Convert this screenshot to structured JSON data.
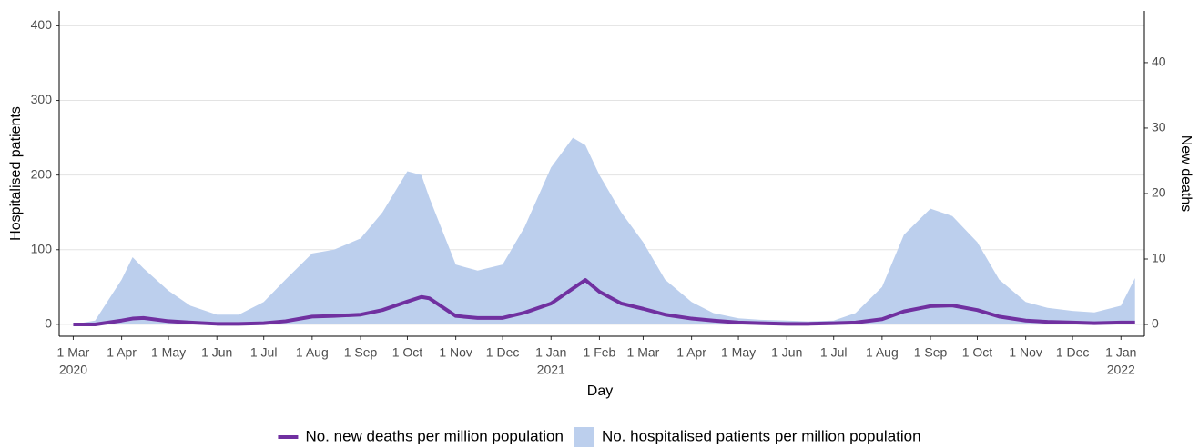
{
  "chart_data": {
    "type": "area-line",
    "x_label": "Day",
    "y_label": "Hospitalised patients",
    "y2_label": "New deaths",
    "x": [
      "2020-03-01",
      "2020-03-15",
      "2020-04-01",
      "2020-04-08",
      "2020-04-15",
      "2020-05-01",
      "2020-05-15",
      "2020-06-01",
      "2020-06-15",
      "2020-07-01",
      "2020-07-15",
      "2020-08-01",
      "2020-08-15",
      "2020-09-01",
      "2020-09-15",
      "2020-10-01",
      "2020-10-10",
      "2020-10-15",
      "2020-11-01",
      "2020-11-15",
      "2020-12-01",
      "2020-12-15",
      "2021-01-01",
      "2021-01-15",
      "2021-01-23",
      "2021-02-01",
      "2021-02-15",
      "2021-03-01",
      "2021-03-15",
      "2021-04-01",
      "2021-04-15",
      "2021-05-01",
      "2021-05-15",
      "2021-06-01",
      "2021-06-15",
      "2021-07-01",
      "2021-07-15",
      "2021-08-01",
      "2021-08-15",
      "2021-09-01",
      "2021-09-15",
      "2021-10-01",
      "2021-10-15",
      "2021-11-01",
      "2021-11-15",
      "2021-12-01",
      "2021-12-15",
      "2022-01-01",
      "2022-01-10"
    ],
    "series": [
      {
        "name": "No. new deaths per million population",
        "color": "#7030a0",
        "axis": "y2",
        "kind": "line",
        "values": [
          0,
          0,
          0.6,
          0.9,
          1.0,
          0.5,
          0.3,
          0.1,
          0.1,
          0.2,
          0.5,
          1.2,
          1.3,
          1.5,
          2.2,
          3.5,
          4.2,
          4.0,
          1.3,
          1.0,
          1.0,
          1.8,
          3.2,
          5.5,
          6.8,
          5.0,
          3.2,
          2.4,
          1.5,
          0.9,
          0.6,
          0.3,
          0.2,
          0.1,
          0.1,
          0.2,
          0.3,
          0.8,
          2.0,
          2.8,
          2.9,
          2.2,
          1.2,
          0.6,
          0.4,
          0.3,
          0.2,
          0.3,
          0.3
        ]
      },
      {
        "name": "No. hospitalised patients per million population",
        "color": "#bccfed",
        "kind": "area",
        "values": [
          0,
          5,
          60,
          90,
          75,
          45,
          25,
          13,
          13,
          30,
          60,
          95,
          100,
          115,
          150,
          205,
          200,
          170,
          80,
          72,
          80,
          130,
          210,
          250,
          240,
          200,
          150,
          110,
          60,
          30,
          15,
          8,
          6,
          5,
          4,
          5,
          15,
          50,
          120,
          155,
          145,
          110,
          60,
          30,
          22,
          18,
          16,
          25,
          62
        ]
      }
    ],
    "xlim": [
      "2020-02-21",
      "2022-01-16"
    ],
    "xticks": [
      {
        "value": "2020-03-01",
        "label": "1 Mar"
      },
      {
        "value": "2020-04-01",
        "label": "1 Apr"
      },
      {
        "value": "2020-05-01",
        "label": "1 May"
      },
      {
        "value": "2020-06-01",
        "label": "1 Jun"
      },
      {
        "value": "2020-07-01",
        "label": "1 Jul"
      },
      {
        "value": "2020-08-01",
        "label": "1 Aug"
      },
      {
        "value": "2020-09-01",
        "label": "1 Sep"
      },
      {
        "value": "2020-10-01",
        "label": "1 Oct"
      },
      {
        "value": "2020-11-01",
        "label": "1 Nov"
      },
      {
        "value": "2020-12-01",
        "label": "1 Dec"
      },
      {
        "value": "2021-01-01",
        "label": "1 Jan"
      },
      {
        "value": "2021-02-01",
        "label": "1 Feb"
      },
      {
        "value": "2021-03-01",
        "label": "1 Mar"
      },
      {
        "value": "2021-04-01",
        "label": "1 Apr"
      },
      {
        "value": "2021-05-01",
        "label": "1 May"
      },
      {
        "value": "2021-06-01",
        "label": "1 Jun"
      },
      {
        "value": "2021-07-01",
        "label": "1 Jul"
      },
      {
        "value": "2021-08-01",
        "label": "1 Aug"
      },
      {
        "value": "2021-09-01",
        "label": "1 Sep"
      },
      {
        "value": "2021-10-01",
        "label": "1 Oct"
      },
      {
        "value": "2021-11-01",
        "label": "1 Nov"
      },
      {
        "value": "2021-12-01",
        "label": "1 Dec"
      },
      {
        "value": "2022-01-01",
        "label": "1 Jan"
      }
    ],
    "year_labels": [
      {
        "value": "2020-03-01",
        "label": "2020"
      },
      {
        "value": "2021-01-01",
        "label": "2021"
      },
      {
        "value": "2022-01-01",
        "label": "2022"
      }
    ],
    "ylim": [
      -16,
      420
    ],
    "yticks": [
      0,
      100,
      200,
      300,
      400
    ],
    "y2lim": [
      -1.8,
      47.9
    ],
    "y2ticks": [
      0,
      10,
      20,
      30,
      40
    ],
    "grid": true
  }
}
